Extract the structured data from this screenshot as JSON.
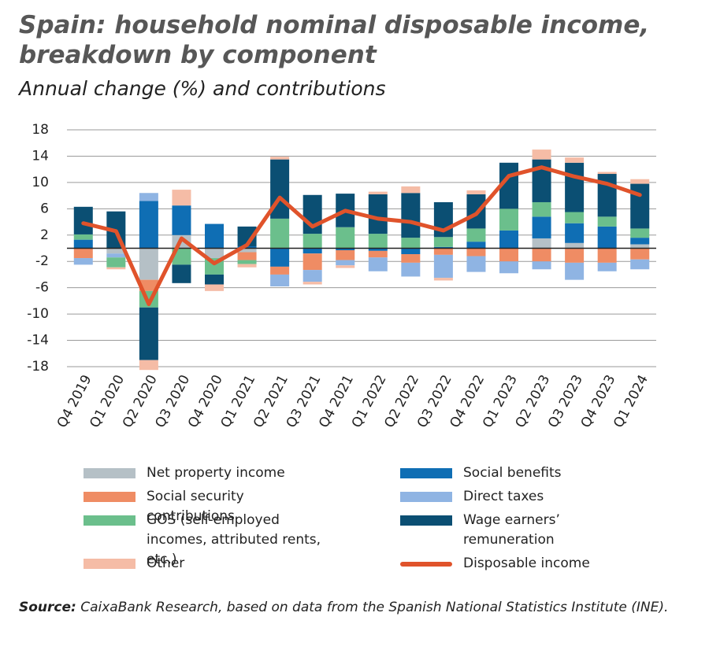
{
  "chart_data": {
    "type": "bar",
    "stacked": true,
    "title": "Spain: household nominal disposable income,",
    "title_line2": "breakdown by component",
    "subtitle": "Annual change (%) and contributions",
    "categories": [
      "Q4 2019",
      "Q1 2020",
      "Q2 2020",
      "Q3 2020",
      "Q4 2020",
      "Q1 2021",
      "Q2 2021",
      "Q3 2021",
      "Q4 2021",
      "Q1 2022",
      "Q2 2022",
      "Q3 2022",
      "Q4 2022",
      "Q1 2023",
      "Q2 2023",
      "Q3 2023",
      "Q4 2023",
      "Q1 2024"
    ],
    "series": [
      {
        "name": "Net property income",
        "color": "#b5c0c6",
        "values": [
          0,
          -0.8,
          -4.8,
          2,
          -1.5,
          -0.6,
          0,
          0,
          0,
          0,
          0,
          0,
          0,
          0,
          1.5,
          0.8,
          0,
          0.6
        ]
      },
      {
        "name": "Social benefits",
        "color": "#0f6eb4",
        "values": [
          1.3,
          0,
          7.2,
          4.5,
          3.7,
          0.3,
          -2.8,
          -0.8,
          -0.3,
          -0.4,
          -0.9,
          0.2,
          1,
          2.7,
          3.3,
          3,
          3.3,
          1
        ]
      },
      {
        "name": "Social security contributions",
        "color": "#ef8c64",
        "values": [
          -1.5,
          0,
          -1.7,
          0,
          0,
          -1.2,
          -1.2,
          -2.5,
          -1.5,
          -1,
          -1.3,
          -1,
          -1.2,
          -2,
          -2,
          -2.2,
          -2.2,
          -1.7
        ]
      },
      {
        "name": "Direct taxes",
        "color": "#8fb4e3",
        "values": [
          -1,
          -0.6,
          1.2,
          0,
          0,
          0,
          -1.8,
          -1.8,
          -0.8,
          -2.1,
          -2.1,
          -3.5,
          -2.4,
          -1.8,
          -1.2,
          -2.6,
          -1.3,
          -1.5
        ]
      },
      {
        "name": "GOS (self-employed incomes, attributed rents, etc.)",
        "color": "#6bbf8c",
        "values": [
          0.8,
          -1.5,
          -2.5,
          -2.5,
          -2.5,
          -0.6,
          4.5,
          2.2,
          3.2,
          2.2,
          1.6,
          1.5,
          2,
          3.3,
          2.2,
          1.7,
          1.5,
          1.4
        ]
      },
      {
        "name": "Wage earners’ remuneration",
        "color": "#0b4f73",
        "values": [
          4.2,
          5.6,
          -8,
          -2.8,
          -1.5,
          3,
          9,
          5.9,
          5.1,
          6,
          6.8,
          5.3,
          5.2,
          7,
          6.5,
          7.5,
          6.5,
          6.8
        ]
      },
      {
        "name": "Other",
        "color": "#f5bca6",
        "values": [
          0,
          -0.3,
          -1.5,
          2.4,
          -1,
          -0.5,
          0.4,
          -0.4,
          -0.4,
          0.4,
          1,
          -0.4,
          0.6,
          0,
          1.5,
          0.8,
          0.3,
          0.7
        ]
      },
      {
        "name": "Disposable income",
        "color": "#e0532b",
        "type": "line",
        "values": [
          3.8,
          2.6,
          -8.5,
          1.5,
          -2.3,
          0.5,
          7.7,
          3.3,
          5.7,
          4.5,
          4,
          2.7,
          5.2,
          11,
          12.3,
          10.9,
          9.8,
          8.1
        ]
      }
    ],
    "ylim": [
      -18,
      18
    ],
    "yticks": [
      -18,
      -14,
      -10,
      -6,
      -2,
      2,
      6,
      10,
      14,
      18
    ],
    "grid": true,
    "source_label": "Source:",
    "source_text": "CaixaBank Research, based on data from the Spanish National Statistics Institute (INE)."
  }
}
